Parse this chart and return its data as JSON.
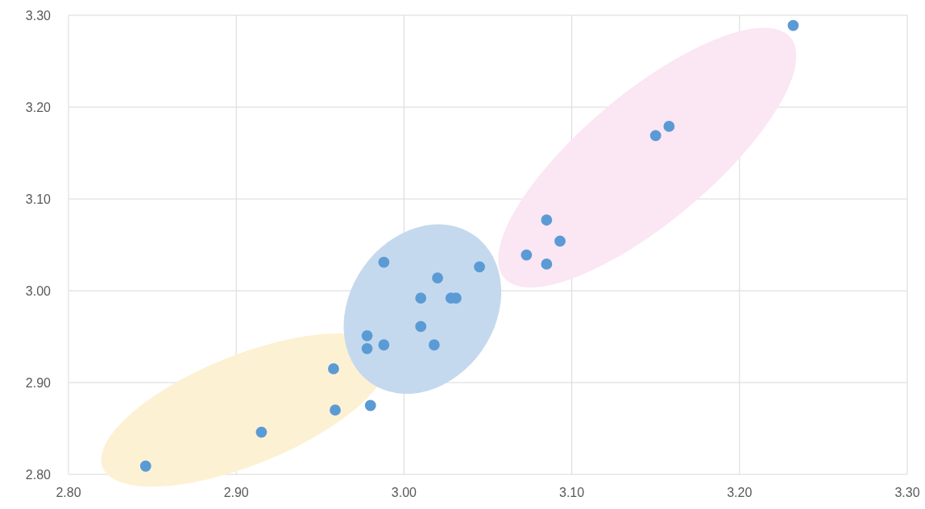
{
  "chart_data": {
    "type": "scatter",
    "marker": "circle",
    "grid": true,
    "xlim": [
      2.8,
      3.3
    ],
    "ylim": [
      2.8,
      3.3
    ],
    "xticks": [
      {
        "value": 2.8,
        "label": "2.80"
      },
      {
        "value": 2.9,
        "label": "2.90"
      },
      {
        "value": 3.0,
        "label": "3.00"
      },
      {
        "value": 3.1,
        "label": "3.10"
      },
      {
        "value": 3.2,
        "label": "3.20"
      },
      {
        "value": 3.3,
        "label": "3.30"
      }
    ],
    "yticks": [
      {
        "value": 2.8,
        "label": "2.80"
      },
      {
        "value": 2.9,
        "label": "2.90"
      },
      {
        "value": 3.0,
        "label": "3.00"
      },
      {
        "value": 3.1,
        "label": "3.10"
      },
      {
        "value": 3.2,
        "label": "3.20"
      },
      {
        "value": 3.3,
        "label": "3.30"
      }
    ],
    "series": [
      {
        "color": "#5b9bd5",
        "x": [
          2.846,
          2.915,
          2.958,
          2.959,
          2.98,
          2.978,
          2.978,
          2.988,
          2.988,
          3.01,
          3.01,
          3.018,
          3.02,
          3.028,
          3.031,
          3.045,
          3.073,
          3.085,
          3.085,
          3.093,
          3.15,
          3.158,
          3.232
        ],
        "values": [
          2.809,
          2.846,
          2.915,
          2.87,
          2.875,
          2.951,
          2.937,
          2.941,
          3.031,
          2.992,
          2.961,
          2.941,
          3.014,
          2.992,
          2.992,
          3.026,
          3.039,
          3.077,
          3.029,
          3.054,
          3.169,
          3.179,
          3.289
        ]
      }
    ]
  }
}
